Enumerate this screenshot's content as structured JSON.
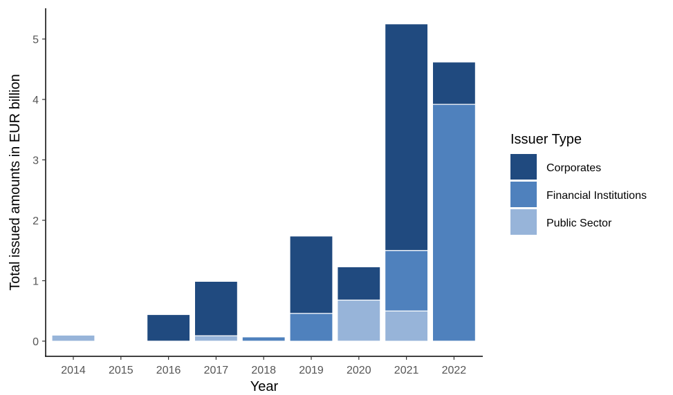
{
  "chart_data": {
    "type": "bar",
    "stacked": true,
    "xlabel": "Year",
    "ylabel": "Total issued amounts in EUR billion",
    "categories": [
      "2014",
      "2015",
      "2016",
      "2017",
      "2018",
      "2019",
      "2020",
      "2021",
      "2022"
    ],
    "ylim": [
      0,
      5.4
    ],
    "yticks": [
      0,
      1,
      2,
      3,
      4,
      5
    ],
    "grid": false,
    "legend": {
      "title": "Issuer Type",
      "position": "right",
      "order": [
        "Corporates",
        "Financial Institutions",
        "Public Sector"
      ]
    },
    "series": [
      {
        "name": "Public Sector",
        "color": "#97b4d9",
        "values": [
          0.1,
          0,
          0,
          0.09,
          0,
          0,
          0.68,
          0.5,
          0
        ]
      },
      {
        "name": "Financial Institutions",
        "color": "#4f81bd",
        "values": [
          0,
          0,
          0,
          0,
          0.07,
          0.46,
          0,
          1.0,
          3.92
        ]
      },
      {
        "name": "Corporates",
        "color": "#204a7f",
        "values": [
          0,
          0,
          0.44,
          0.9,
          0,
          1.28,
          0.55,
          3.75,
          0.7
        ]
      }
    ]
  }
}
